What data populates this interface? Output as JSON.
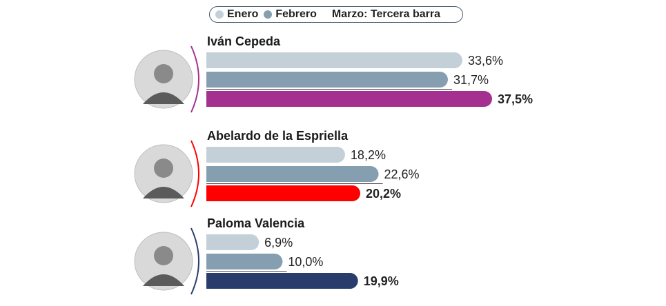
{
  "legend": [
    {
      "label": "Enero",
      "color": "#c3d0d8"
    },
    {
      "label": "Febrero",
      "color": "#869fb0"
    },
    {
      "label": "Marzo: Tercera barra",
      "color": ""
    }
  ],
  "colors": {
    "enero": "#c3d0d8",
    "febrero": "#869fb0"
  },
  "chart_data": {
    "type": "bar",
    "orientation": "horizontal",
    "title": "",
    "series": [
      {
        "name": "Enero"
      },
      {
        "name": "Febrero"
      },
      {
        "name": "Marzo"
      }
    ],
    "candidates": [
      {
        "name": "Iván Cepeda",
        "accent": "#a4318f",
        "photo": "candidate-photo",
        "values": [
          33.6,
          31.7,
          37.5
        ],
        "labels": [
          "33,6%",
          "31,7%",
          "37,5%"
        ]
      },
      {
        "name": "Abelardo de la Espriella",
        "accent": "#fe0000",
        "photo": "candidate-photo",
        "values": [
          18.2,
          22.6,
          20.2
        ],
        "labels": [
          "18,2%",
          "22,6%",
          "20,2%"
        ]
      },
      {
        "name": "Paloma Valencia",
        "accent": "#283d6b",
        "photo": "candidate-photo",
        "values": [
          6.9,
          10.0,
          19.9
        ],
        "labels": [
          "6,9%",
          "10,0%",
          "19,9%"
        ]
      }
    ],
    "xlim": [
      0,
      37.5
    ],
    "grid": false
  }
}
